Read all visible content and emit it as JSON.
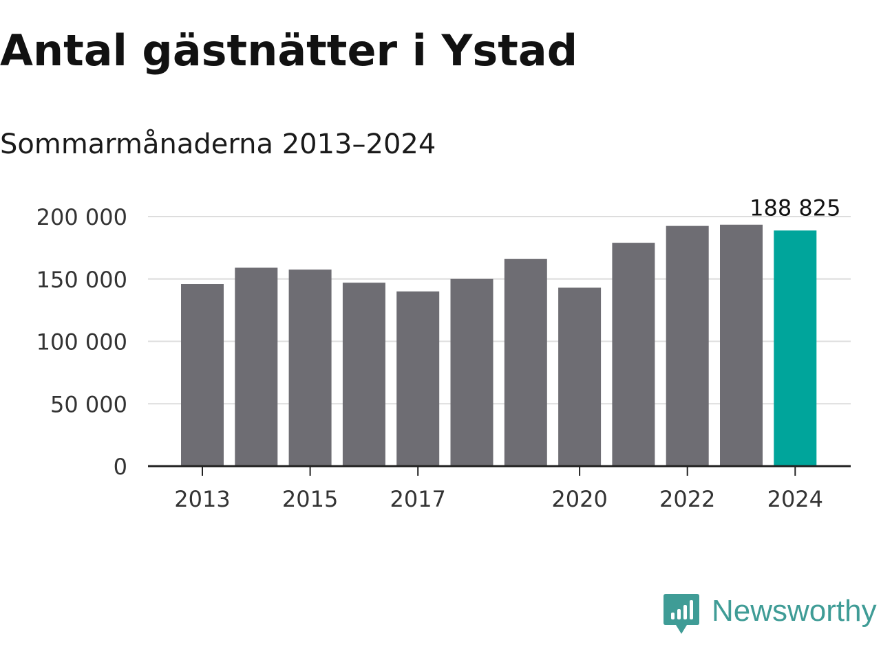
{
  "title": "Antal gästnätter i Ystad",
  "subtitle": "Sommarmånaderna 2013–2024",
  "brand": {
    "name": "Newsworthy",
    "color": "#3f9c96",
    "icon": "newsworthy-logo-icon"
  },
  "colors": {
    "bar": "#6e6d73",
    "highlight": "#00a59b",
    "grid": "#dddddd",
    "axis": "#222222",
    "text": "#333333"
  },
  "chart_data": {
    "type": "bar",
    "title": "Antal gästnätter i Ystad",
    "subtitle": "Sommarmånaderna 2013–2024",
    "xlabel": "",
    "ylabel": "",
    "categories": [
      "2013",
      "2014",
      "2015",
      "2016",
      "2017",
      "2018",
      "2019",
      "2020",
      "2021",
      "2022",
      "2023",
      "2024"
    ],
    "values": [
      146000,
      159000,
      157500,
      147000,
      140000,
      150000,
      166000,
      143000,
      179000,
      192500,
      193500,
      188825
    ],
    "highlight_index": 11,
    "highlight_label": "188 825",
    "ylim": [
      0,
      200000
    ],
    "yticks": [
      0,
      50000,
      100000,
      150000,
      200000
    ],
    "ytick_labels": [
      "0",
      "50 000",
      "100 000",
      "150 000",
      "200 000"
    ],
    "xtick_labels": [
      "2013",
      "2015",
      "2017",
      "2020",
      "2022",
      "2024"
    ],
    "grid": true,
    "legend": "none"
  }
}
